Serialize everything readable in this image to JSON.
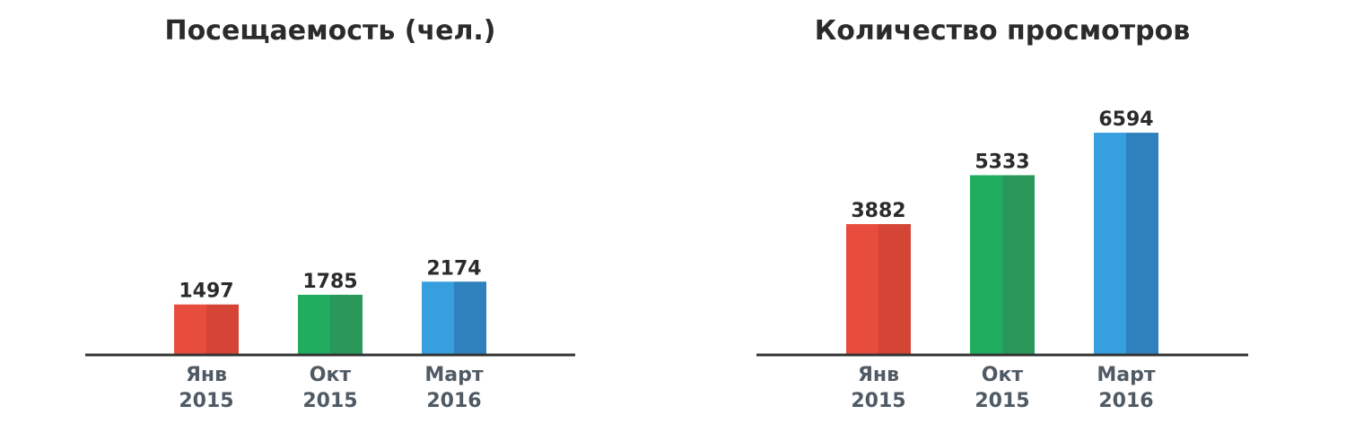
{
  "chart_data": [
    {
      "type": "bar",
      "title": "Посещаемость (чел.)",
      "categories": [
        [
          "Янв",
          "2015"
        ],
        [
          "Окт",
          "2015"
        ],
        [
          "Март",
          "2016"
        ]
      ],
      "values": [
        1497,
        1785,
        2174
      ],
      "colors": [
        {
          "light": "#e74c3c",
          "dark": "#d44535"
        },
        {
          "light": "#20ad5f",
          "dark": "#29985a"
        },
        {
          "light": "#389fdf",
          "dark": "#2f81bd"
        }
      ],
      "axis_color": "#333333",
      "ylim": [
        0,
        7500
      ],
      "grid": false
    },
    {
      "type": "bar",
      "title": "Количество просмотров",
      "categories": [
        [
          "Янв",
          "2015"
        ],
        [
          "Окт",
          "2015"
        ],
        [
          "Март",
          "2016"
        ]
      ],
      "values": [
        3882,
        5333,
        6594
      ],
      "colors": [
        {
          "light": "#e74c3c",
          "dark": "#d44535"
        },
        {
          "light": "#20ad5f",
          "dark": "#29985a"
        },
        {
          "light": "#389fdf",
          "dark": "#2f81bd"
        }
      ],
      "axis_color": "#333333",
      "ylim": [
        0,
        7500
      ],
      "grid": false
    }
  ]
}
